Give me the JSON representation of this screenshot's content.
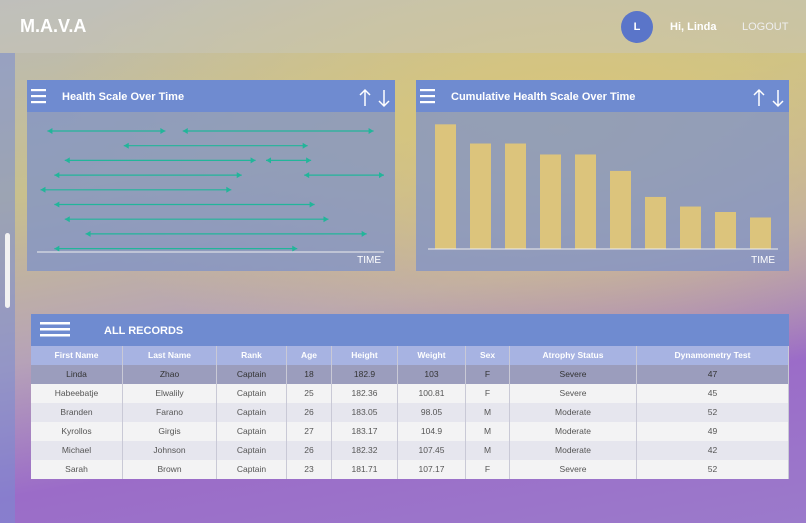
{
  "header": {
    "brand": "M.A.V.A",
    "avatar": "L",
    "greeting": "Hi, Linda",
    "logout": "LOGOUT"
  },
  "chart_data": [
    {
      "type": "range",
      "title": "Health Scale Over Time",
      "x_label": "TIME",
      "color": "#22b59a",
      "xlim": [
        0,
        100
      ],
      "rows": [
        [
          [
            3,
            37
          ],
          [
            42,
            97
          ]
        ],
        [
          [
            25,
            78
          ]
        ],
        [
          [
            8,
            63
          ],
          [
            66,
            79
          ]
        ],
        [
          [
            5,
            59
          ],
          [
            77,
            100
          ]
        ],
        [
          [
            1,
            56
          ]
        ],
        [
          [
            5,
            80
          ]
        ],
        [
          [
            8,
            84
          ]
        ],
        [
          [
            14,
            95
          ]
        ],
        [
          [
            5,
            75
          ]
        ]
      ]
    },
    {
      "type": "bar",
      "title": "Cumulative Health Scale Over Time",
      "x_label": "TIME",
      "color": "#dcc47c",
      "ylim": [
        0,
        100
      ],
      "categories": [
        null,
        null,
        null,
        null,
        null,
        null,
        null,
        null,
        null,
        null
      ],
      "values": [
        91,
        77,
        77,
        69,
        69,
        57,
        38,
        31,
        27,
        23
      ]
    }
  ],
  "table": {
    "title": "ALL RECORDS",
    "columns": [
      "First Name",
      "Last Name",
      "Rank",
      "Age",
      "Height",
      "Weight",
      "Sex",
      "Atrophy Status",
      "Dynamometry Test"
    ],
    "rows": [
      [
        "Linda",
        "Zhao",
        "Captain",
        "18",
        "182.9",
        "103",
        "F",
        "Severe",
        "47"
      ],
      [
        "Habeebatje",
        "Elwalily",
        "Captain",
        "25",
        "182.36",
        "100.81",
        "F",
        "Severe",
        "45"
      ],
      [
        "Branden",
        "Farano",
        "Captain",
        "26",
        "183.05",
        "98.05",
        "M",
        "Moderate",
        "52"
      ],
      [
        "Kyrollos",
        "Girgis",
        "Captain",
        "27",
        "183.17",
        "104.9",
        "M",
        "Moderate",
        "49"
      ],
      [
        "Michael",
        "Johnson",
        "Captain",
        "26",
        "182.32",
        "107.45",
        "M",
        "Moderate",
        "42"
      ],
      [
        "Sarah",
        "Brown",
        "Captain",
        "23",
        "181.71",
        "107.17",
        "F",
        "Severe",
        "52"
      ]
    ]
  }
}
